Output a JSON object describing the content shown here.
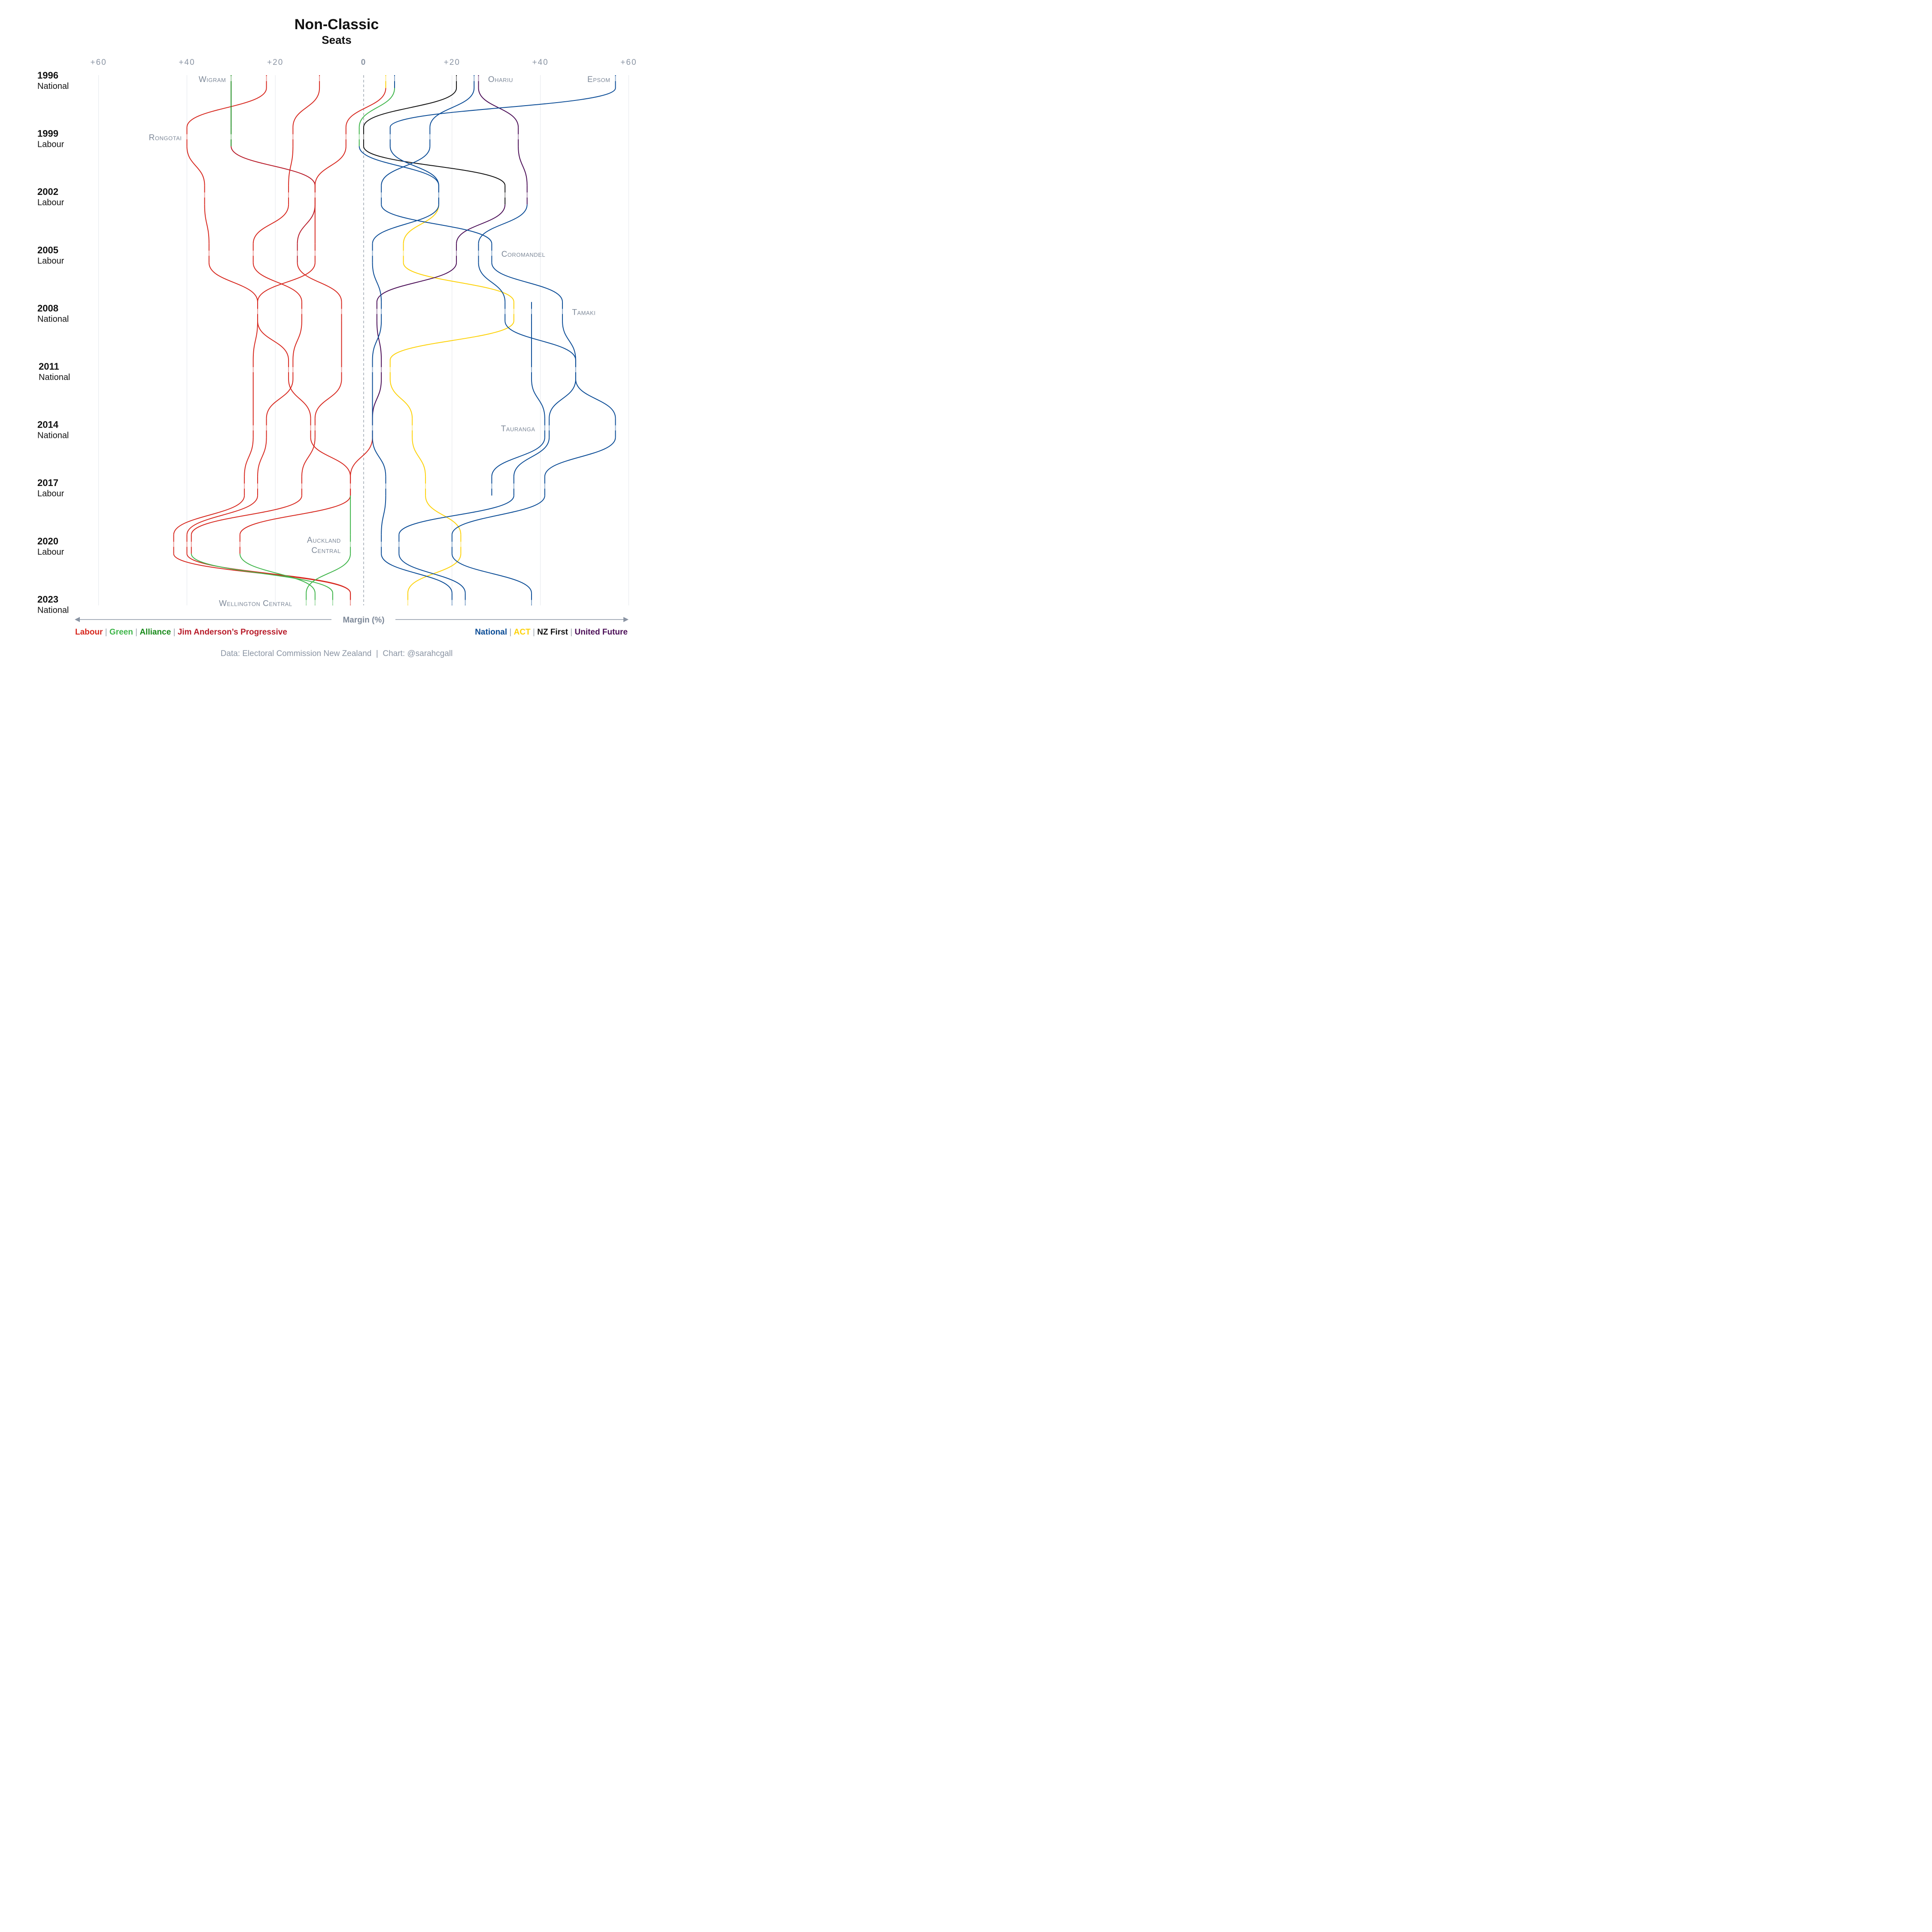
{
  "chart_data": {
    "type": "line",
    "title": "Non-Classic",
    "subtitle": "Seats",
    "xlabel": "Margin (%)",
    "xlim": [
      -60,
      60
    ],
    "x_ticks": [
      {
        "value": -60,
        "label": "+60"
      },
      {
        "value": -40,
        "label": "+40"
      },
      {
        "value": -20,
        "label": "+20"
      },
      {
        "value": 0,
        "label": "0"
      },
      {
        "value": 20,
        "label": "+20"
      },
      {
        "value": 40,
        "label": "+40"
      },
      {
        "value": 60,
        "label": "+60"
      }
    ],
    "elections": [
      {
        "year": "1996",
        "government": "National"
      },
      {
        "year": "1999",
        "government": "Labour"
      },
      {
        "year": "2002",
        "government": "Labour"
      },
      {
        "year": "2005",
        "government": "Labour"
      },
      {
        "year": "2008",
        "government": "National"
      },
      {
        "year": "2011",
        "government": "National"
      },
      {
        "year": "2014",
        "government": "National"
      },
      {
        "year": "2017",
        "government": "Labour"
      },
      {
        "year": "2020",
        "government": "Labour"
      },
      {
        "year": "2023",
        "government": "National"
      }
    ],
    "party_colors": {
      "labour": "#d7281f",
      "green": "#3fb54a",
      "alliance": "#188a1a",
      "progressive": "#b81c2a",
      "national": "#0b4c96",
      "act": "#fdd20a",
      "nzfirst": "#111111",
      "unitedfuture": "#4b0e57"
    },
    "series": [
      {
        "margins": [
          -22,
          -40,
          -36,
          -35,
          -24,
          -25,
          -25,
          -27,
          -43,
          -3
        ],
        "parties": [
          "labour",
          "labour",
          "labour",
          "labour",
          "labour",
          "labour",
          "labour",
          "labour",
          "labour",
          "labour"
        ]
      },
      {
        "margins": [
          -10,
          -16,
          -17,
          -25,
          -14,
          -16,
          -22,
          -24,
          -40,
          -3
        ],
        "parties": [
          "labour",
          "labour",
          "labour",
          "labour",
          "labour",
          "labour",
          "labour",
          "labour",
          "labour",
          "labour"
        ]
      },
      {
        "margins": [
          -30,
          -30,
          -11,
          -15,
          -5,
          -5,
          -11,
          -14,
          -39,
          -7
        ],
        "parties": [
          "alliance",
          "alliance",
          "progressive",
          "progressive",
          "labour",
          "labour",
          "labour",
          "labour",
          "labour",
          "green"
        ]
      },
      {
        "margins": [
          5,
          -4,
          -11,
          -11,
          -24,
          -17,
          -12,
          -3,
          -28,
          -11
        ],
        "parties": [
          "act",
          "labour",
          "labour",
          "labour",
          "labour",
          "labour",
          "labour",
          "labour",
          "labour",
          "green"
        ]
      },
      {
        "margins": [
          7,
          -1,
          17,
          9,
          34,
          6,
          11,
          14,
          22,
          10
        ],
        "parties": [
          "national",
          "green",
          "national",
          "act",
          "act",
          "act",
          "act",
          "act",
          "act",
          "act"
        ]
      },
      {
        "margins": [
          21,
          0,
          32,
          21,
          3,
          4,
          2,
          -3,
          -3,
          -13
        ],
        "parties": [
          "nzfirst",
          "nzfirst",
          "nzfirst",
          "unitedfuture",
          "unitedfuture",
          "unitedfuture",
          "unitedfuture",
          "labour",
          "green",
          "green"
        ]
      },
      {
        "margins": [
          26,
          35,
          37,
          26,
          32,
          48,
          57,
          41,
          20,
          38
        ],
        "parties": [
          "unitedfuture",
          "unitedfuture",
          "unitedfuture",
          "national",
          "national",
          "national",
          "national",
          "national",
          "national",
          "national"
        ]
      },
      {
        "margins": [
          25,
          15,
          4,
          29,
          45,
          48,
          42,
          34,
          8,
          23
        ],
        "parties": [
          "national",
          "national",
          "national",
          "national",
          "national",
          "national",
          "national",
          "national",
          "national",
          "national"
        ]
      },
      {
        "margins": [
          57,
          6,
          17,
          2,
          4,
          2,
          2,
          5,
          4,
          20
        ],
        "parties": [
          "national",
          "national",
          "national",
          "national",
          "national",
          "national",
          "national",
          "national",
          "national",
          "national"
        ]
      },
      {
        "margins": [
          null,
          null,
          null,
          null,
          38,
          38,
          41,
          29,
          null,
          null
        ],
        "parties": [
          null,
          null,
          null,
          null,
          "national",
          "national",
          "national",
          "national",
          null,
          null
        ]
      }
    ],
    "annotations": [
      {
        "text": "Wigram",
        "election": "1996",
        "x": -30,
        "align": "end"
      },
      {
        "text": "Ohariu",
        "election": "1996",
        "x": 27,
        "align": "start"
      },
      {
        "text": "Epsom",
        "election": "1996",
        "x": 57,
        "align": "end"
      },
      {
        "text": "Rongotai",
        "election": "1999",
        "x": -40,
        "align": "end"
      },
      {
        "text": "Coromandel",
        "election": "2005",
        "x": 30,
        "align": "start"
      },
      {
        "text": "Tamaki",
        "election": "2008",
        "x": 46,
        "align": "start"
      },
      {
        "text": "Tauranga",
        "election": "2014",
        "x": 40,
        "align": "end"
      },
      {
        "text": "Auckland",
        "election": "2020",
        "x": -4,
        "align": "end",
        "line": 1
      },
      {
        "text": "Central",
        "election": "2020",
        "x": -4,
        "align": "end",
        "line": 2
      },
      {
        "text": "Wellington Central",
        "election": "2023",
        "x": -15,
        "align": "end"
      }
    ],
    "legend_left": [
      {
        "label": "Labour",
        "party": "labour"
      },
      {
        "label": "Green",
        "party": "green"
      },
      {
        "label": "Alliance",
        "party": "alliance"
      },
      {
        "label": "Jim Anderson’s Progressive",
        "party": "progressive"
      }
    ],
    "legend_right": [
      {
        "label": "National",
        "party": "national"
      },
      {
        "label": "ACT",
        "party": "act"
      },
      {
        "label": "NZ First",
        "party": "nzfirst"
      },
      {
        "label": "United Future",
        "party": "unitedfuture"
      }
    ],
    "legend_separator": "|",
    "source": "Data: Electoral Commission New Zealand  |  Chart: @sarahcgall",
    "grid": true
  }
}
